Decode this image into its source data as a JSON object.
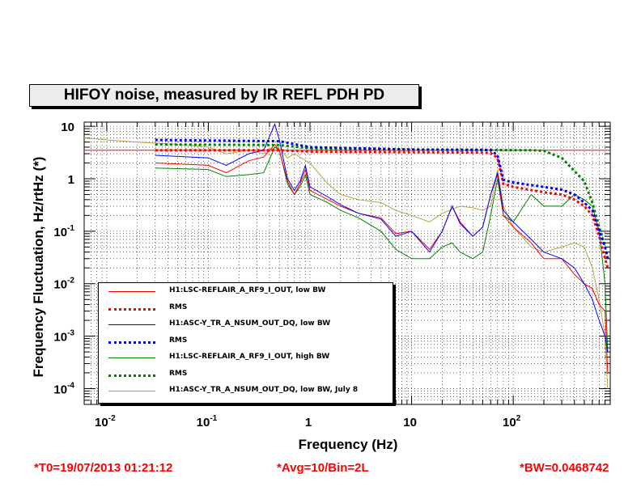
{
  "title": "HIFOY noise, measured by IR REFL PDH PD",
  "footer": {
    "t0": "*T0=19/07/2013 01:21:12",
    "avg": "*Avg=10/Bin=2L",
    "bw": "*BW=0.0468742"
  },
  "chart_data": {
    "type": "line",
    "xlabel": "Frequency (Hz)",
    "ylabel": "Frequency Fluctuation, Hz/rtHz (*)",
    "x_scale": "log",
    "y_scale": "log",
    "xlim": [
      0.006,
      900
    ],
    "ylim": [
      5e-05,
      12
    ],
    "x_ticks": [
      {
        "value": 0.01,
        "base": "10",
        "exp": "-2"
      },
      {
        "value": 0.1,
        "base": "10",
        "exp": "-1"
      },
      {
        "value": 1,
        "base": "1",
        "exp": ""
      },
      {
        "value": 10,
        "base": "10",
        "exp": ""
      },
      {
        "value": 100,
        "base": "10",
        "exp": "2"
      }
    ],
    "y_ticks": [
      {
        "value": 0.0001,
        "base": "10",
        "exp": "-4"
      },
      {
        "value": 0.001,
        "base": "10",
        "exp": "-3"
      },
      {
        "value": 0.01,
        "base": "10",
        "exp": "-2"
      },
      {
        "value": 0.1,
        "base": "10",
        "exp": "-1"
      },
      {
        "value": 1,
        "base": "1",
        "exp": ""
      },
      {
        "value": 10,
        "base": "10",
        "exp": ""
      }
    ],
    "reference_line": {
      "y": 3.5,
      "color": "#ff0000"
    },
    "legend_position": "bottom-left",
    "series": [
      {
        "name": "H1:LSC-REFLAIR_A_RF9_I_OUT, low BW",
        "color": "#ff0000",
        "style": "solid",
        "x": [
          0.03,
          0.1,
          0.15,
          0.25,
          0.35,
          0.45,
          0.5,
          0.6,
          0.7,
          0.8,
          0.9,
          1.0,
          1.5,
          2,
          3,
          5,
          7,
          10,
          15,
          20,
          25,
          30,
          40,
          50,
          60,
          70,
          80,
          100,
          150,
          200,
          300,
          400,
          500,
          600,
          700,
          800,
          850
        ],
        "y": [
          2.0,
          1.8,
          1.3,
          2.2,
          2.6,
          4.5,
          3.5,
          0.9,
          0.5,
          0.8,
          1.5,
          0.6,
          0.4,
          0.3,
          0.22,
          0.18,
          0.09,
          0.1,
          0.045,
          0.1,
          0.3,
          0.15,
          0.08,
          0.12,
          0.5,
          1.2,
          0.2,
          0.12,
          0.06,
          0.03,
          0.03,
          0.015,
          0.01,
          0.008,
          0.004,
          0.003,
          0.0002
        ]
      },
      {
        "name": "RMS",
        "color": "#ff0000",
        "style": "dotted",
        "x": [
          0.03,
          0.5,
          1,
          10,
          50,
          60,
          70,
          80,
          100,
          200,
          300,
          400,
          500,
          600,
          700,
          800,
          850
        ],
        "y": [
          3.5,
          3.5,
          3.3,
          3.2,
          3.15,
          3.1,
          2.5,
          0.8,
          0.7,
          0.55,
          0.5,
          0.4,
          0.3,
          0.2,
          0.08,
          0.03,
          0.02
        ]
      },
      {
        "name": "H1:ASC-Y_TR_A_NSUM_OUT_DQ, low BW",
        "color": "#0000ff",
        "style": "solid",
        "x": [
          0.03,
          0.1,
          0.15,
          0.25,
          0.35,
          0.45,
          0.5,
          0.6,
          0.7,
          0.8,
          0.9,
          1.0,
          1.5,
          2,
          3,
          5,
          7,
          10,
          15,
          20,
          25,
          30,
          40,
          50,
          60,
          70,
          80,
          100,
          150,
          200,
          300,
          400,
          500,
          600,
          700,
          800,
          850
        ],
        "y": [
          2.8,
          2.5,
          1.8,
          3.0,
          3.5,
          11,
          5.5,
          1.0,
          0.6,
          0.9,
          1.8,
          0.7,
          0.45,
          0.32,
          0.22,
          0.17,
          0.08,
          0.1,
          0.04,
          0.1,
          0.3,
          0.14,
          0.08,
          0.12,
          0.5,
          1.3,
          0.25,
          0.15,
          0.07,
          0.04,
          0.03,
          0.02,
          0.01,
          0.005,
          0.002,
          0.001,
          0.0005
        ]
      },
      {
        "name": "RMS",
        "color": "#0000ff",
        "style": "dotted",
        "x": [
          0.03,
          0.5,
          1,
          10,
          50,
          60,
          70,
          80,
          100,
          200,
          300,
          400,
          500,
          600,
          700,
          800,
          850
        ],
        "y": [
          5.5,
          5.2,
          4.0,
          3.6,
          3.55,
          3.5,
          2.8,
          0.95,
          0.85,
          0.7,
          0.62,
          0.5,
          0.35,
          0.25,
          0.1,
          0.05,
          0.03
        ]
      },
      {
        "name": "H1:LSC-REFLAIR_A_RF9_I_OUT, high BW",
        "color": "#008000",
        "style": "solid",
        "x": [
          0.03,
          0.1,
          0.15,
          0.25,
          0.35,
          0.45,
          0.5,
          0.6,
          0.7,
          0.8,
          0.9,
          1.0,
          1.5,
          2,
          3,
          5,
          7,
          10,
          15,
          20,
          25,
          30,
          40,
          50,
          60,
          70,
          80,
          100,
          150,
          200,
          300,
          400,
          500,
          600,
          700,
          800,
          850
        ],
        "y": [
          1.6,
          1.5,
          1.1,
          1.2,
          1.3,
          4.0,
          3.5,
          0.8,
          0.5,
          0.7,
          1.2,
          0.5,
          0.35,
          0.25,
          0.18,
          0.1,
          0.045,
          0.03,
          0.03,
          0.05,
          0.06,
          0.04,
          0.03,
          0.04,
          0.2,
          1.0,
          0.2,
          0.15,
          0.5,
          0.3,
          0.3,
          0.5,
          0.4,
          0.3,
          0.1,
          0.01,
          0.0005
        ]
      },
      {
        "name": "RMS",
        "color": "#008000",
        "style": "dotted",
        "x": [
          0.03,
          0.5,
          1,
          10,
          50,
          100,
          150,
          200,
          300,
          400,
          500,
          600,
          700,
          800,
          850
        ],
        "y": [
          4.5,
          4.4,
          3.8,
          3.6,
          3.55,
          3.5,
          3.5,
          3.4,
          2.5,
          1.4,
          0.9,
          0.35,
          0.12,
          0.05,
          0.03
        ]
      },
      {
        "name": "H1:ASC-Y_TR_A_NSUM_OUT_DQ, low BW, July 8",
        "color": "#b5a642",
        "style": "solid",
        "x": [
          0.006,
          0.01,
          0.02,
          0.05,
          0.1,
          0.15,
          0.25,
          0.35,
          0.45,
          0.5,
          0.6,
          0.7,
          1.0,
          1.5,
          2,
          3,
          5,
          7,
          10,
          15,
          20,
          30,
          40,
          50,
          60,
          70,
          80,
          100,
          150,
          200,
          300,
          400,
          500,
          600,
          700,
          800,
          850
        ],
        "y": [
          6.0,
          5.5,
          5.0,
          4.5,
          4.0,
          3.0,
          3.5,
          3.0,
          4.0,
          3.8,
          2.5,
          3.0,
          2.0,
          0.8,
          0.5,
          0.4,
          0.35,
          0.25,
          0.2,
          0.15,
          0.22,
          0.3,
          0.28,
          0.25,
          0.3,
          1.5,
          0.3,
          0.12,
          0.05,
          0.04,
          0.05,
          0.06,
          0.05,
          0.02,
          0.005,
          0.001,
          0.0001
        ]
      }
    ]
  }
}
